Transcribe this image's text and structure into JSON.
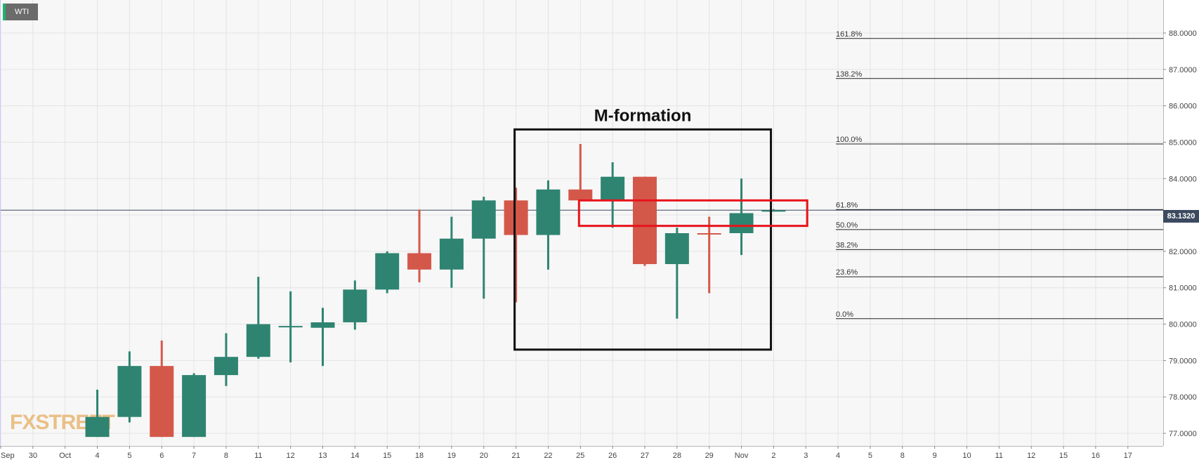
{
  "symbol": "WTI",
  "current_price_label": "83.1320",
  "watermark": "FXSTREET",
  "colors": {
    "up": "#2e8471",
    "down": "#d4584a",
    "price_line": "#3c4a60",
    "background": "#f7f7f7",
    "grid": "#e4e4e4",
    "formation_box": "#111111",
    "highlight_box": "#e8141c"
  },
  "chart_data": {
    "type": "candlestick",
    "title": "",
    "xlabel": "",
    "ylabel": "",
    "ylim": [
      76.9,
      88.9
    ],
    "y_ticks": [
      "77.0000",
      "78.0000",
      "79.0000",
      "80.0000",
      "81.0000",
      "82.0000",
      "83.0000",
      "84.0000",
      "85.0000",
      "86.0000",
      "87.0000",
      "88.0000"
    ],
    "y_tick_values": [
      77,
      78,
      79,
      80,
      81,
      82,
      83,
      84,
      85,
      86,
      87,
      88
    ],
    "x_ticks": [
      "Sep",
      "30",
      "Oct",
      "4",
      "5",
      "6",
      "7",
      "8",
      "11",
      "12",
      "13",
      "14",
      "15",
      "18",
      "19",
      "20",
      "21",
      "22",
      "25",
      "26",
      "27",
      "28",
      "29",
      "Nov",
      "2",
      "3",
      "4",
      "5",
      "8",
      "9",
      "10",
      "11",
      "12",
      "15",
      "16",
      "17"
    ],
    "candles": [
      {
        "date": "4",
        "open": 76.9,
        "high": 78.2,
        "low": 76.9,
        "close": 77.45
      },
      {
        "date": "5",
        "open": 77.45,
        "high": 79.25,
        "low": 77.3,
        "close": 78.85
      },
      {
        "date": "6",
        "open": 78.85,
        "high": 79.55,
        "low": 76.9,
        "close": 76.9
      },
      {
        "date": "7",
        "open": 76.9,
        "high": 78.65,
        "low": 76.9,
        "close": 78.6
      },
      {
        "date": "8",
        "open": 78.6,
        "high": 79.75,
        "low": 78.3,
        "close": 79.1
      },
      {
        "date": "11",
        "open": 79.1,
        "high": 81.3,
        "low": 79.05,
        "close": 80.0
      },
      {
        "date": "12",
        "open": 79.95,
        "high": 80.9,
        "low": 78.95,
        "close": 79.95
      },
      {
        "date": "13",
        "open": 79.9,
        "high": 80.45,
        "low": 78.85,
        "close": 80.05
      },
      {
        "date": "14",
        "open": 80.05,
        "high": 81.2,
        "low": 79.85,
        "close": 80.95
      },
      {
        "date": "15",
        "open": 80.95,
        "high": 82.0,
        "low": 80.85,
        "close": 81.95
      },
      {
        "date": "18",
        "open": 81.95,
        "high": 83.15,
        "low": 81.15,
        "close": 81.5
      },
      {
        "date": "19",
        "open": 81.5,
        "high": 82.95,
        "low": 81.0,
        "close": 82.35
      },
      {
        "date": "20",
        "open": 82.35,
        "high": 83.5,
        "low": 80.7,
        "close": 83.4
      },
      {
        "date": "21",
        "open": 83.4,
        "high": 83.75,
        "low": 80.6,
        "close": 82.45
      },
      {
        "date": "22",
        "open": 82.45,
        "high": 83.95,
        "low": 81.5,
        "close": 83.7
      },
      {
        "date": "25",
        "open": 83.7,
        "high": 84.95,
        "low": 83.4,
        "close": 83.4
      },
      {
        "date": "26",
        "open": 83.4,
        "high": 84.45,
        "low": 82.65,
        "close": 84.05
      },
      {
        "date": "27",
        "open": 84.05,
        "high": 84.05,
        "low": 81.6,
        "close": 81.65
      },
      {
        "date": "28",
        "open": 81.65,
        "high": 82.65,
        "low": 80.15,
        "close": 82.5
      },
      {
        "date": "29",
        "open": 82.5,
        "high": 82.95,
        "low": 80.85,
        "close": 82.48
      },
      {
        "date": "Nov",
        "open": 82.5,
        "high": 84.0,
        "low": 81.9,
        "close": 83.05
      },
      {
        "date": "2",
        "open": 83.13,
        "high": 83.16,
        "low": 83.11,
        "close": 83.13
      }
    ],
    "current_price": 83.132,
    "fibonacci_levels": [
      {
        "label": "161.8%",
        "price": 87.85
      },
      {
        "label": "138.2%",
        "price": 86.75
      },
      {
        "label": "100.0%",
        "price": 84.95
      },
      {
        "label": "61.8%",
        "price": 83.15
      },
      {
        "label": "50.0%",
        "price": 82.6
      },
      {
        "label": "38.2%",
        "price": 82.05
      },
      {
        "label": "23.6%",
        "price": 81.3
      },
      {
        "label": "0.0%",
        "price": 80.15
      }
    ],
    "annotations": [
      {
        "text": "M-formation",
        "type": "box",
        "x_from": "21",
        "x_to": "Nov",
        "y_from": 79.3,
        "y_to": 85.35
      },
      {
        "text": "",
        "type": "highlight_box",
        "x_from": "25",
        "x_to": "3",
        "y_from": 82.7,
        "y_to": 83.4
      }
    ],
    "grid": true
  }
}
